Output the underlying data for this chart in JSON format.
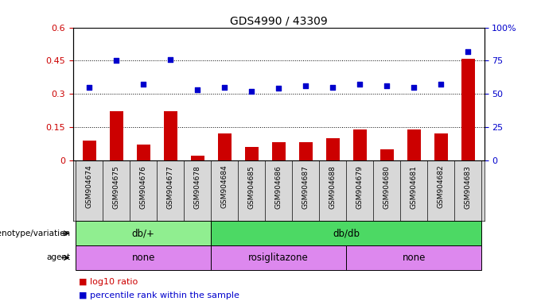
{
  "title": "GDS4990 / 43309",
  "samples": [
    "GSM904674",
    "GSM904675",
    "GSM904676",
    "GSM904677",
    "GSM904678",
    "GSM904684",
    "GSM904685",
    "GSM904686",
    "GSM904687",
    "GSM904688",
    "GSM904679",
    "GSM904680",
    "GSM904681",
    "GSM904682",
    "GSM904683"
  ],
  "log10_ratio": [
    0.09,
    0.22,
    0.07,
    0.22,
    0.02,
    0.12,
    0.06,
    0.08,
    0.08,
    0.1,
    0.14,
    0.05,
    0.14,
    0.12,
    0.46
  ],
  "percentile_rank": [
    55,
    75,
    57,
    76,
    53,
    55,
    52,
    54,
    56,
    55,
    57,
    56,
    55,
    57,
    82
  ],
  "bar_color": "#cc0000",
  "dot_color": "#0000cc",
  "ylim_left": [
    0,
    0.6
  ],
  "ylim_right": [
    0,
    100
  ],
  "yticks_left": [
    0,
    0.15,
    0.3,
    0.45,
    0.6
  ],
  "yticks_right": [
    0,
    25,
    50,
    75,
    100
  ],
  "genotype_groups": [
    {
      "label": "db/+",
      "start": 0,
      "end": 4,
      "color": "#90ee90"
    },
    {
      "label": "db/db",
      "start": 5,
      "end": 14,
      "color": "#4cd964"
    }
  ],
  "agent_groups": [
    {
      "label": "none",
      "start": 0,
      "end": 4,
      "color": "#dd88ee"
    },
    {
      "label": "rosiglitazone",
      "start": 5,
      "end": 9,
      "color": "#dd88ee"
    },
    {
      "label": "none",
      "start": 10,
      "end": 14,
      "color": "#dd88ee"
    }
  ],
  "left_axis_color": "#cc0000",
  "right_axis_color": "#0000cc",
  "sample_area_color": "#d8d8d8",
  "geno_light_color": "#b0f0b0",
  "geno_dark_color": "#44cc44",
  "agent_color": "#dd88ee"
}
